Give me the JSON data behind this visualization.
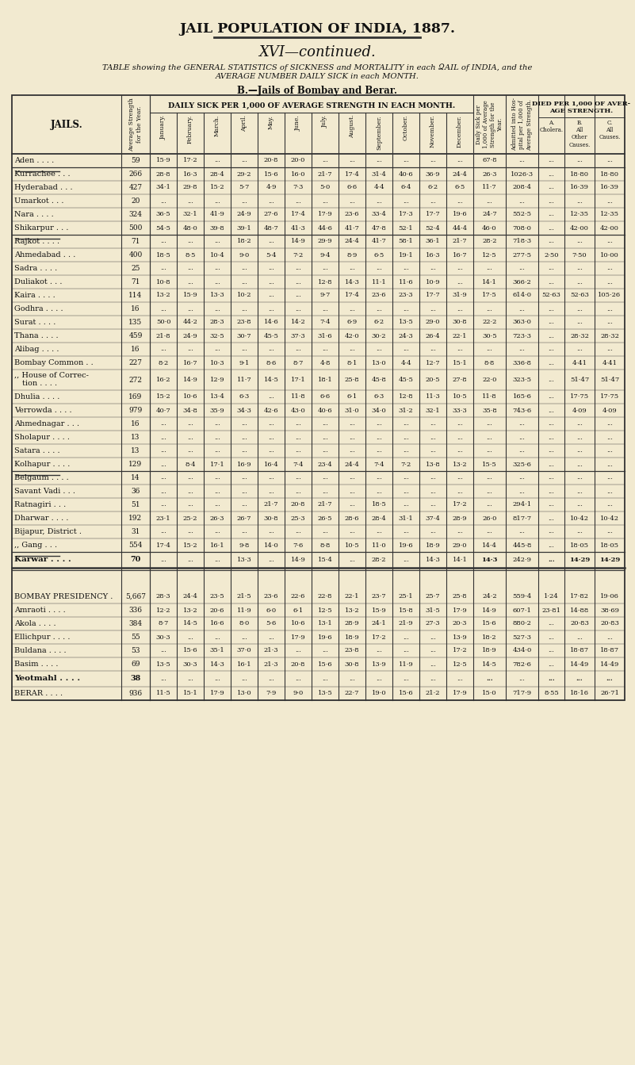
{
  "page_title": "JAIL POPULATION OF INDIA, 1887.",
  "section_title": "XVI—continued.",
  "subtitle_line1": "TABLE showing the GENERAL STATISTICS of SICKNESS and MORTALITY in each ՁAIL of INDIA, and the",
  "subtitle_line2": "AVERAGE NUMBER DAILY SICK in each MONTH.",
  "section_label": "B.—Jails of Bombay and Berar.",
  "month_headers": [
    "January.",
    "February.",
    "March.",
    "April.",
    "May.",
    "June.",
    "July.",
    "August.",
    "September.",
    "October.",
    "November.",
    "December."
  ],
  "died_sub_headers": [
    "A.\nCholera.",
    "B.\nAll\nOther\nCauses.",
    "C.\nAll\nCauses."
  ],
  "rows": [
    [
      "Aden . . . .",
      "59",
      "15·9",
      "17·2",
      "...",
      "...",
      "20·8",
      "20·0",
      "...",
      "...",
      "...",
      "...",
      "...",
      "...",
      "67·8",
      "...",
      "...",
      "...",
      "..."
    ],
    [
      "Kurrachee . . .",
      "266",
      "28·8",
      "16·3",
      "28·4",
      "29·2",
      "15·6",
      "16·0",
      "21·7",
      "17·4",
      "31·4",
      "40·6",
      "36·9",
      "24·4",
      "26·3",
      "1026·3",
      "...",
      "18·80",
      "18·80"
    ],
    [
      "Hyderabad . . .",
      "427",
      "34·1",
      "29·8",
      "15·2",
      "5·7",
      "4·9",
      "7·3",
      "5·0",
      "6·6",
      "4·4",
      "6·4",
      "6·2",
      "6·5",
      "11·7",
      "208·4",
      "...",
      "16·39",
      "16·39"
    ],
    [
      "Umarkot . . .",
      "20",
      "...",
      "...",
      "...",
      "...",
      "...",
      "...",
      "...",
      "...",
      "...",
      "...",
      "...",
      "...",
      "...",
      "...",
      "...",
      "...",
      "..."
    ],
    [
      "Nara . . . .",
      "324",
      "36·5",
      "32·1",
      "41·9",
      "24·9",
      "27·6",
      "17·4",
      "17·9",
      "23·6",
      "33·4",
      "17·3",
      "17·7",
      "19·6",
      "24·7",
      "552·5",
      "...",
      "12·35",
      "12·35"
    ],
    [
      "Shikarpur . . .",
      "500",
      "54·5",
      "48·0",
      "39·8",
      "39·1",
      "48·7",
      "41·3",
      "44·6",
      "41·7",
      "47·8",
      "52·1",
      "52·4",
      "44·4",
      "46·0",
      "708·0",
      "...",
      "42·00",
      "42·00"
    ],
    [
      "Rajkot . . . .",
      "71",
      "...",
      "...",
      "...",
      "18·2",
      "...",
      "14·9",
      "29·9",
      "24·4",
      "41·7",
      "58·1",
      "36·1",
      "21·7",
      "28·2",
      "718·3",
      "...",
      "...",
      "..."
    ],
    [
      "Ahmedabad . . .",
      "400",
      "18·5",
      "8·5",
      "10·4",
      "9·0",
      "5·4",
      "7·2",
      "9·4",
      "8·9",
      "6·5",
      "19·1",
      "16·3",
      "16·7",
      "12·5",
      "277·5",
      "2·50",
      "7·50",
      "10·00"
    ],
    [
      "Sadra . . . .",
      "25",
      "...",
      "...",
      "...",
      "...",
      "...",
      "...",
      "...",
      "...",
      "...",
      "...",
      "...",
      "...",
      "...",
      "...",
      "...",
      "...",
      "..."
    ],
    [
      "Duliakot . . .",
      "71",
      "10·8",
      "...",
      "...",
      "...",
      "...",
      "...",
      "12·8",
      "14·3",
      "11·1",
      "11·6",
      "10·9",
      "...",
      "14·1",
      "366·2",
      "...",
      "...",
      "..."
    ],
    [
      "Kaira . . . .",
      "114",
      "13·2",
      "15·9",
      "13·3",
      "10·2",
      "...",
      "...",
      "9·7",
      "17·4",
      "23·6",
      "23·3",
      "17·7",
      "31·9",
      "17·5",
      "614·0",
      "52·63",
      "52·63",
      "105·26"
    ],
    [
      "Godhra . . . .",
      "16",
      "...",
      "...",
      "...",
      "...",
      "...",
      "...",
      "...",
      "...",
      "...",
      "...",
      "...",
      "...",
      "...",
      "...",
      "...",
      "...",
      "..."
    ],
    [
      "Surat . . . .",
      "135",
      "50·0",
      "44·2",
      "28·3",
      "23·8",
      "14·6",
      "14·2",
      "7·4",
      "6·9",
      "6·2",
      "13·5",
      "29·0",
      "30·8",
      "22·2",
      "363·0",
      "...",
      "...",
      "..."
    ],
    [
      "Thana . . . .",
      "459",
      "21·8",
      "24·9",
      "32·5",
      "30·7",
      "45·5",
      "37·3",
      "31·6",
      "42·0",
      "30·2",
      "24·3",
      "26·4",
      "22·1",
      "30·5",
      "723·3",
      "...",
      "28·32",
      "28·32"
    ],
    [
      "Alibag . . . .",
      "16",
      "...",
      "...",
      "...",
      "...",
      "...",
      "...",
      "...",
      "...",
      "...",
      "...",
      "...",
      "...",
      "...",
      "...",
      "...",
      "...",
      "..."
    ],
    [
      "Bombay Common . .",
      "227",
      "8·2",
      "16·7",
      "10·3",
      "9·1",
      "8·6",
      "8·7",
      "4·8",
      "8·1",
      "13·0",
      "4·4",
      "12·7",
      "15·1",
      "8·8",
      "336·8",
      "...",
      "4·41",
      "4·41"
    ],
    [
      ",, House of Correc-\ntion . . . .",
      "272",
      "16·2",
      "14·9",
      "12·9",
      "11·7",
      "14·5",
      "17·1",
      "18·1",
      "25·8",
      "45·8",
      "45·5",
      "20·5",
      "27·8",
      "22·0",
      "323·5",
      "...",
      "51·47",
      "51·47"
    ],
    [
      "Dhulia . . . .",
      "169",
      "15·2",
      "10·6",
      "13·4",
      "6·3",
      "...",
      "11·8",
      "6·6",
      "6·1",
      "6·3",
      "12·8",
      "11·3",
      "10·5",
      "11·8",
      "165·6",
      "...",
      "17·75",
      "17·75"
    ],
    [
      "Verrowda . . . .",
      "979",
      "40·7",
      "34·8",
      "35·9",
      "34·3",
      "42·6",
      "43·0",
      "40·6",
      "31·0",
      "34·0",
      "31·2",
      "32·1",
      "33·3",
      "35·8",
      "743·6",
      "...",
      "4·09",
      "4·09"
    ],
    [
      "Ahmednagar . . .",
      "16",
      "...",
      "...",
      "...",
      "...",
      "...",
      "...",
      "...",
      "...",
      "...",
      "...",
      "...",
      "...",
      "...",
      "...",
      "...",
      "...",
      "..."
    ],
    [
      "Sholapur . . . .",
      "13",
      "...",
      "...",
      "...",
      "...",
      "...",
      "...",
      "...",
      "...",
      "...",
      "...",
      "...",
      "...",
      "...",
      "...",
      "...",
      "...",
      "..."
    ],
    [
      "Satara . . . .",
      "13",
      "...",
      "...",
      "...",
      "...",
      "...",
      "...",
      "...",
      "...",
      "...",
      "...",
      "...",
      "...",
      "...",
      "...",
      "...",
      "...",
      "..."
    ],
    [
      "Kolhapur . . . .",
      "129",
      "...",
      "8·4",
      "17·1",
      "16·9",
      "16·4",
      "7·4",
      "23·4",
      "24·4",
      "7·4",
      "7·2",
      "13·8",
      "13·2",
      "15·5",
      "325·6",
      "...",
      "...",
      "..."
    ],
    [
      "Belgaum . . . .",
      "14",
      "...",
      "...",
      "...",
      "...",
      "...",
      "...",
      "...",
      "...",
      "...",
      "...",
      "...",
      "...",
      "...",
      "...",
      "...",
      "...",
      "..."
    ],
    [
      "Savant Vadi . . .",
      "36",
      "...",
      "...",
      "...",
      "...",
      "...",
      "...",
      "...",
      "...",
      "...",
      "...",
      "...",
      "...",
      "...",
      "...",
      "...",
      "...",
      "..."
    ],
    [
      "Ratnagiri . . .",
      "51",
      "...",
      "...",
      "...",
      "...",
      "21·7",
      "20·8",
      "21·7",
      "...",
      "18·5",
      "...",
      "...",
      "17·2",
      "...",
      "294·1",
      "...",
      "...",
      "..."
    ],
    [
      "Dharwar . . . .",
      "192",
      "23·1",
      "25·2",
      "26·3",
      "26·7",
      "30·8",
      "25·3",
      "26·5",
      "28·6",
      "28·4",
      "31·1",
      "37·4",
      "28·9",
      "26·0",
      "817·7",
      "...",
      "10·42",
      "10·42"
    ],
    [
      "Bijapur, District .",
      "31",
      "...",
      "...",
      "...",
      "...",
      "...",
      "...",
      "...",
      "...",
      "...",
      "...",
      "...",
      "...",
      "...",
      "...",
      "...",
      "...",
      "..."
    ],
    [
      ",, Gang . . .",
      "554",
      "17·4",
      "15·2",
      "16·1",
      "9·8",
      "14·0",
      "7·6",
      "8·8",
      "10·5",
      "11·0",
      "19·6",
      "18·9",
      "29·0",
      "14·4",
      "445·8",
      "...",
      "18·05",
      "18·05"
    ],
    [
      "Karwar . . . .",
      "70",
      "...",
      "...",
      "...",
      "13·3",
      "...",
      "14·9",
      "15·4",
      "...",
      "28·2",
      "...",
      "14·3",
      "14·1",
      "14·3",
      "242·9",
      "...",
      "14·29",
      "14·29"
    ],
    [
      "BOMBAY PRESIDENCY .",
      "5,667",
      "28·3",
      "24·4",
      "23·5",
      "21·5",
      "23·6",
      "22·6",
      "22·8",
      "22·1",
      "23·7",
      "25·1",
      "25·7",
      "25·8",
      "24·2",
      "559·4",
      "1·24",
      "17·82",
      "19·06"
    ],
    [
      "Amraoti . . . .",
      "336",
      "12·2",
      "13·2",
      "20·6",
      "11·9",
      "6·0",
      "6·1",
      "12·5",
      "13·2",
      "15·9",
      "15·8",
      "31·5",
      "17·9",
      "14·9",
      "607·1",
      "23·81",
      "14·88",
      "38·69"
    ],
    [
      "Akola . . . .",
      "384",
      "8·7",
      "14·5",
      "16·6",
      "8·0",
      "5·6",
      "10·6",
      "13·1",
      "28·9",
      "24·1",
      "21·9",
      "27·3",
      "20·3",
      "15·6",
      "880·2",
      "...",
      "20·83",
      "20·83"
    ],
    [
      "Ellichpur . . . .",
      "55",
      "30·3",
      "...",
      "...",
      "...",
      "...",
      "17·9",
      "19·6",
      "18·9",
      "17·2",
      "...",
      "...",
      "13·9",
      "18·2",
      "527·3",
      "...",
      "...",
      "..."
    ],
    [
      "Buldana . . . .",
      "53",
      "...",
      "15·6",
      "35·1",
      "37·0",
      "21·3",
      "...",
      "...",
      "23·8",
      "...",
      "...",
      "...",
      "17·2",
      "18·9",
      "434·0",
      "...",
      "18·87",
      "18·87"
    ],
    [
      "Basim . . . .",
      "69",
      "13·5",
      "30·3",
      "14·3",
      "16·1",
      "21·3",
      "20·8",
      "15·6",
      "30·8",
      "13·9",
      "11·9",
      "...",
      "12·5",
      "14·5",
      "782·6",
      "...",
      "14·49",
      "14·49"
    ],
    [
      "Yeotmahl . . . .",
      "38",
      "...",
      "...",
      "...",
      "...",
      "...",
      "...",
      "...",
      "...",
      "...",
      "...",
      "...",
      "...",
      "...",
      "...",
      "...",
      "...",
      "..."
    ],
    [
      "BERAR . . . .",
      "936",
      "11·5",
      "15·1",
      "17·9",
      "13·0",
      "7·9",
      "9·0",
      "13·5",
      "22·7",
      "19·0",
      "15·6",
      "21·2",
      "17·9",
      "15·0",
      "717·9",
      "8·55",
      "18·16",
      "26·71"
    ]
  ],
  "separator_after": [
    0,
    5,
    22,
    28
  ],
  "double_line_after": [
    29
  ],
  "bold_rows": [
    29,
    36
  ],
  "spacer_rows": [
    30
  ],
  "bg_color": "#f2ead0",
  "text_color": "#111111",
  "line_color": "#333333"
}
